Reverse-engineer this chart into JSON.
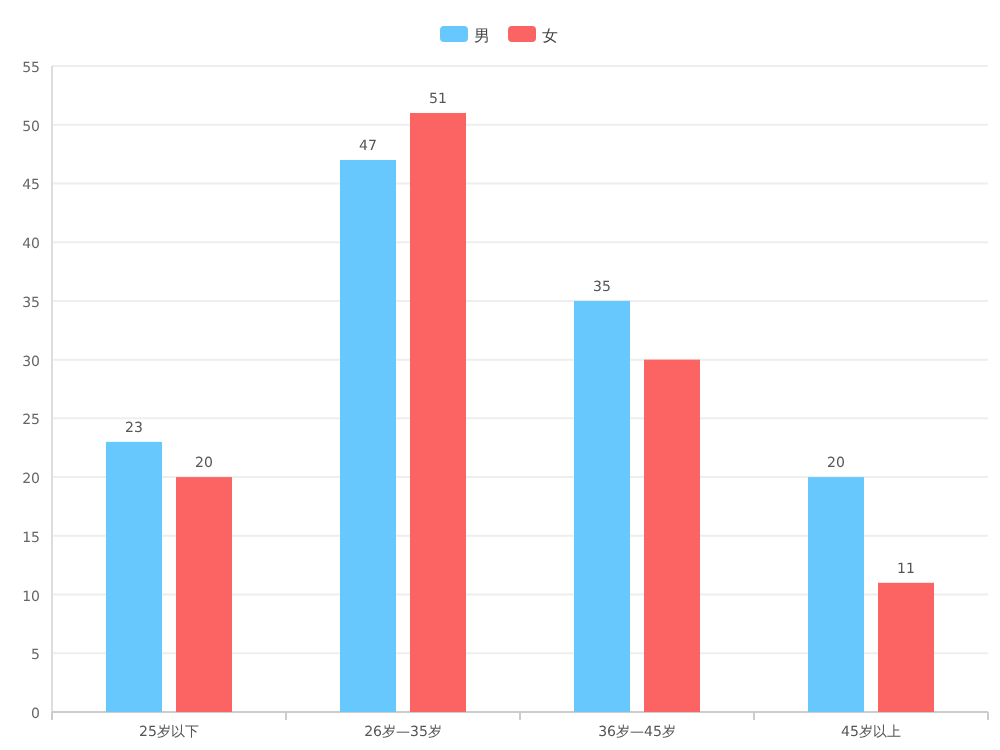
{
  "chart_data": {
    "type": "bar",
    "categories": [
      "25岁以下",
      "26岁—35岁",
      "36岁—45岁",
      "45岁以上"
    ],
    "series": [
      {
        "name": "男",
        "color": "#66c8fc",
        "values": [
          23,
          47,
          35,
          20
        ],
        "value_labels": [
          "23",
          "47",
          "35",
          "20"
        ]
      },
      {
        "name": "女",
        "color": "#fc6464",
        "values": [
          20,
          51,
          30,
          11
        ],
        "value_labels": [
          "20",
          "51",
          null,
          "11"
        ]
      }
    ],
    "ylim": [
      0,
      55
    ],
    "yticks": [
      0,
      5,
      10,
      15,
      20,
      25,
      30,
      35,
      40,
      45,
      50,
      55
    ],
    "grid": "y",
    "legend": "top"
  }
}
